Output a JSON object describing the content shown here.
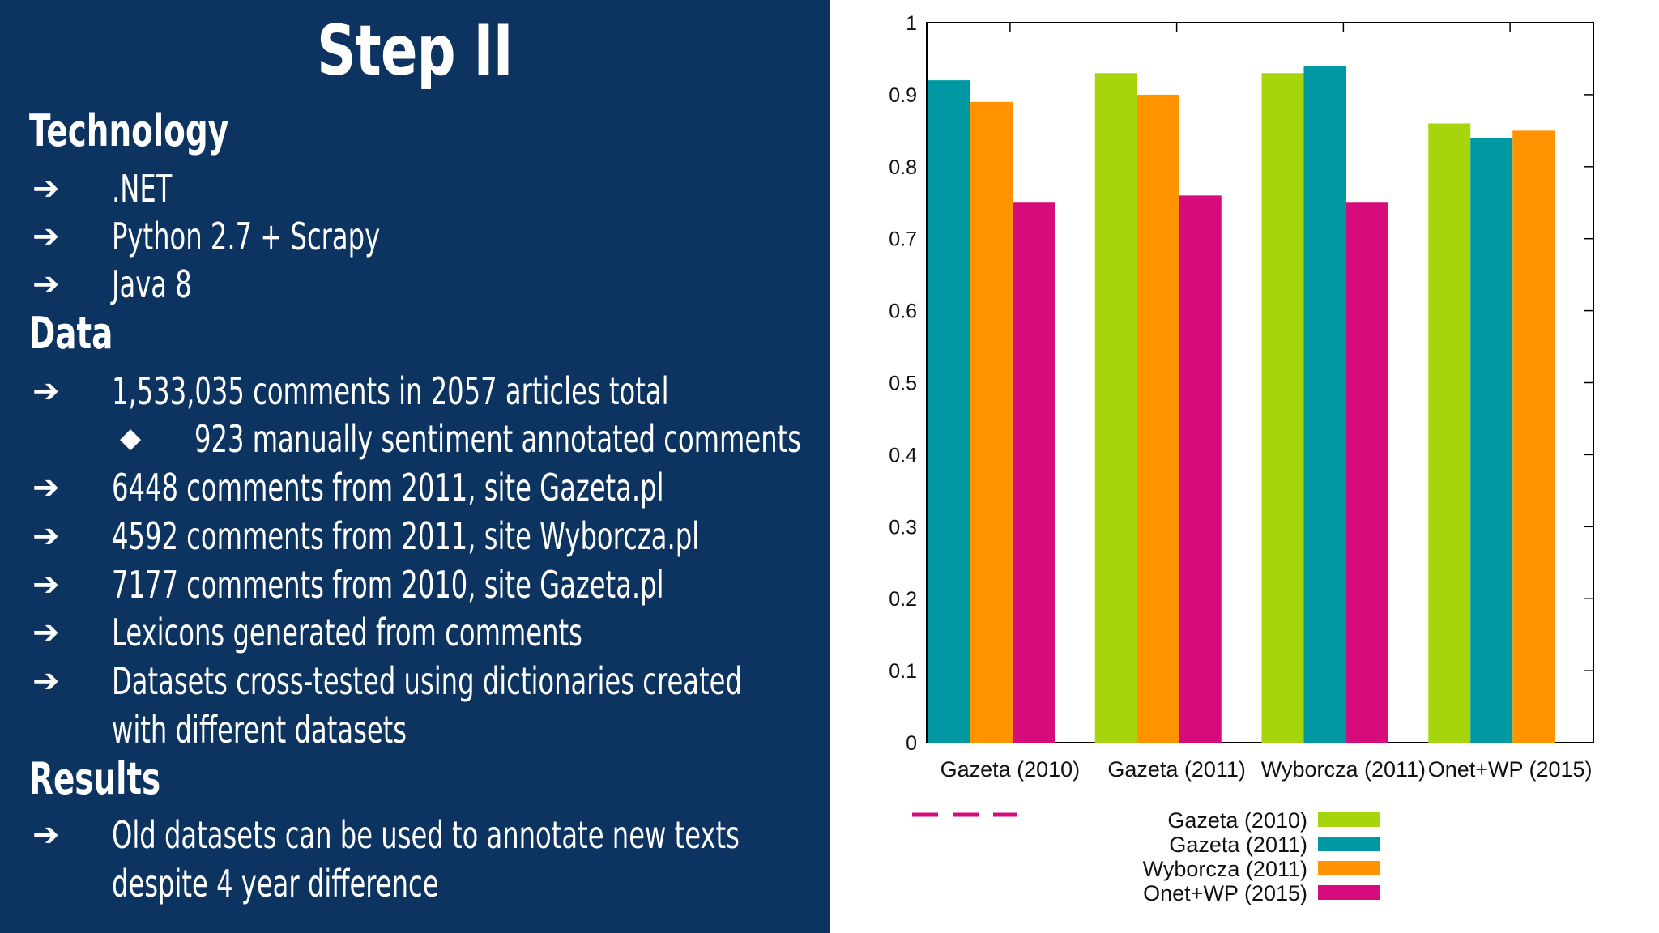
{
  "slide": {
    "title": "Step II",
    "arrow_glyph": "➔",
    "diamond_glyph": "◆",
    "sections": {
      "technology": {
        "heading": "Technology",
        "items": [
          ".NET",
          "Python 2.7 + Scrapy",
          "Java 8"
        ]
      },
      "data": {
        "heading": "Data",
        "items": [
          "1,533,035 comments in 2057 articles total",
          "6448 comments from 2011, site Gazeta.pl",
          "4592 comments from 2011, site Wyborcza.pl",
          "7177 comments from 2010, site Gazeta.pl",
          "Lexicons generated from comments",
          "Datasets cross-tested using dictionaries created",
          "with different datasets"
        ],
        "subitem": "923 manually sentiment annotated comments"
      },
      "results": {
        "heading": "Results",
        "items": [
          "Old datasets can be used to annotate new texts",
          "despite 4 year difference"
        ]
      }
    }
  },
  "chart_data": {
    "type": "bar",
    "categories": [
      "Gazeta (2010)",
      "Gazeta (2011)",
      "Wyborcza (2011)",
      "Onet+WP (2015)"
    ],
    "series": [
      {
        "name": "Gazeta (2010)",
        "color": "#a6d40d",
        "values": [
          null,
          0.93,
          0.93,
          0.86
        ]
      },
      {
        "name": "Gazeta (2011)",
        "color": "#0099a3",
        "values": [
          0.92,
          null,
          0.94,
          0.84
        ]
      },
      {
        "name": "Wyborcza (2011)",
        "color": "#ff9400",
        "values": [
          0.89,
          0.9,
          null,
          0.85
        ]
      },
      {
        "name": "Onet+WP (2015)",
        "color": "#d60b7c",
        "values": [
          0.75,
          0.76,
          0.75,
          null
        ]
      }
    ],
    "ylim": [
      0,
      1
    ],
    "yticks": [
      "0",
      "0.1",
      "0.2",
      "0.3",
      "0.4",
      "0.5",
      "0.6",
      "0.7",
      "0.8",
      "0.9",
      "1"
    ],
    "title": "",
    "xlabel": "",
    "ylabel": "",
    "legend_position": "bottom-right",
    "dash_color": "#d60b7c"
  }
}
